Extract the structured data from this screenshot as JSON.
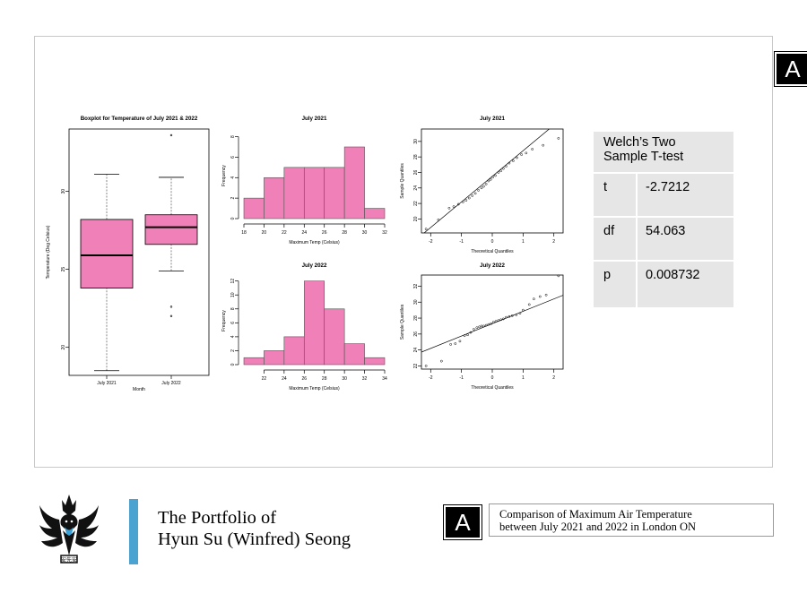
{
  "badge": {
    "top_label": "A",
    "bottom_label": "A"
  },
  "colors": {
    "bar_fill": "#f080b8",
    "box_fill": "#f080b8",
    "accent": "#4aa3d0",
    "table_bg": "#e6e6e6"
  },
  "ttest": {
    "title_line1": "Welch’s Two",
    "title_line2": "Sample T-test",
    "rows": [
      {
        "key": "t",
        "value": "-2.7212"
      },
      {
        "key": "df",
        "value": "54.063"
      },
      {
        "key": "p",
        "value": "0.008732"
      }
    ]
  },
  "footer": {
    "portfolio_line1": "The Portfolio of",
    "portfolio_line2": "Hyun Su (Winfred) Seong",
    "caption_line1": "Comparison of Maximum Air Temperature",
    "caption_line2": "between July 2021 and 2022 in London ON",
    "logo_text": "安先安"
  },
  "chart_data": [
    {
      "type": "boxplot",
      "title": "Boxplot for Temperature of July 2021 & 2022",
      "xlabel": "Month",
      "ylabel": "Temperature (Deg Celsius)",
      "categories": [
        "July 2021",
        "July 2022"
      ],
      "ylim": [
        18.2,
        34.0
      ],
      "yticks": [
        20,
        25,
        30
      ],
      "boxes": [
        {
          "name": "July 2021",
          "whisker_low": 18.5,
          "q1": 23.8,
          "median": 25.9,
          "q3": 28.2,
          "whisker_high": 31.1,
          "outliers": []
        },
        {
          "name": "July 2022",
          "whisker_low": 24.9,
          "q1": 26.6,
          "median": 27.7,
          "q3": 28.5,
          "whisker_high": 30.9,
          "outliers": [
            22.0,
            22.6,
            33.6
          ]
        }
      ]
    },
    {
      "type": "bar",
      "subtype": "histogram",
      "title": "July 2021",
      "xlabel": "Maximum Temp (Celsius)",
      "ylabel": "Frequency",
      "bin_edges": [
        18,
        20,
        22,
        24,
        26,
        28,
        30,
        32
      ],
      "values": [
        2,
        4,
        5,
        5,
        5,
        7,
        1
      ],
      "xticks": [
        18,
        20,
        22,
        24,
        26,
        28,
        30,
        32
      ],
      "yticks": [
        0,
        2,
        4,
        6,
        8
      ],
      "ylim": [
        0,
        8.4
      ]
    },
    {
      "type": "scatter",
      "subtype": "qqplot",
      "title": "July 2021",
      "xlabel": "Theoretical Quantiles",
      "ylabel": "Sample Quantiles",
      "xlim": [
        -2.3,
        2.3
      ],
      "ylim": [
        18.2,
        31.6
      ],
      "xticks": [
        -2,
        -1,
        0,
        1,
        2
      ],
      "yticks": [
        20,
        22,
        24,
        26,
        28,
        30
      ],
      "line": {
        "intercept": 25.5,
        "slope": 3.3
      },
      "points": [
        [
          -2.15,
          18.7
        ],
        [
          -1.75,
          19.9
        ],
        [
          -1.4,
          21.4
        ],
        [
          -1.25,
          21.6
        ],
        [
          -1.1,
          21.9
        ],
        [
          -0.95,
          22.2
        ],
        [
          -0.85,
          22.4
        ],
        [
          -0.75,
          22.7
        ],
        [
          -0.65,
          23.0
        ],
        [
          -0.55,
          23.3
        ],
        [
          -0.45,
          23.7
        ],
        [
          -0.35,
          24.0
        ],
        [
          -0.28,
          24.2
        ],
        [
          -0.2,
          24.5
        ],
        [
          -0.12,
          24.9
        ],
        [
          -0.05,
          25.1
        ],
        [
          0.02,
          25.4
        ],
        [
          0.1,
          25.6
        ],
        [
          0.2,
          26.0
        ],
        [
          0.28,
          26.2
        ],
        [
          0.36,
          26.5
        ],
        [
          0.45,
          26.8
        ],
        [
          0.55,
          27.2
        ],
        [
          0.68,
          27.5
        ],
        [
          0.8,
          27.9
        ],
        [
          0.95,
          28.3
        ],
        [
          1.1,
          28.5
        ],
        [
          1.3,
          29.0
        ],
        [
          1.65,
          29.5
        ],
        [
          2.15,
          30.4
        ]
      ]
    },
    {
      "type": "bar",
      "subtype": "histogram",
      "title": "July 2022",
      "xlabel": "Maximum Temp (Celsius)",
      "ylabel": "Frequency",
      "bin_edges": [
        22,
        24,
        26,
        28,
        30,
        32,
        34
      ],
      "values": [
        1,
        2,
        4,
        12,
        8,
        3,
        1
      ],
      "bin_edges_full": [
        20,
        22,
        24,
        26,
        28,
        30,
        32,
        34
      ],
      "xticks": [
        22,
        24,
        26,
        28,
        30,
        32,
        34
      ],
      "yticks": [
        0,
        2,
        4,
        6,
        8,
        10,
        12
      ],
      "ylim": [
        0,
        12.6
      ]
    },
    {
      "type": "scatter",
      "subtype": "qqplot",
      "title": "July 2022",
      "xlabel": "Theoretical Quantiles",
      "ylabel": "Sample Quantiles",
      "xlim": [
        -2.3,
        2.3
      ],
      "ylim": [
        21.6,
        33.4
      ],
      "xticks": [
        -2,
        -1,
        0,
        1,
        2
      ],
      "yticks": [
        22,
        24,
        26,
        28,
        30,
        32
      ],
      "line": {
        "intercept": 27.3,
        "slope": 1.55
      },
      "points": [
        [
          -2.15,
          22.0
        ],
        [
          -1.65,
          22.6
        ],
        [
          -1.35,
          24.7
        ],
        [
          -1.2,
          24.8
        ],
        [
          -1.05,
          25.1
        ],
        [
          -0.9,
          25.8
        ],
        [
          -0.8,
          25.9
        ],
        [
          -0.7,
          26.2
        ],
        [
          -0.6,
          26.6
        ],
        [
          -0.5,
          26.8
        ],
        [
          -0.42,
          26.9
        ],
        [
          -0.35,
          27.0
        ],
        [
          -0.28,
          27.0
        ],
        [
          -0.2,
          27.1
        ],
        [
          -0.12,
          27.2
        ],
        [
          -0.04,
          27.3
        ],
        [
          0.04,
          27.5
        ],
        [
          0.12,
          27.6
        ],
        [
          0.2,
          27.7
        ],
        [
          0.28,
          27.8
        ],
        [
          0.36,
          27.9
        ],
        [
          0.45,
          28.1
        ],
        [
          0.55,
          28.2
        ],
        [
          0.65,
          28.3
        ],
        [
          0.78,
          28.4
        ],
        [
          0.9,
          28.6
        ],
        [
          1.0,
          29.0
        ],
        [
          1.2,
          29.7
        ],
        [
          1.35,
          30.4
        ],
        [
          1.55,
          30.7
        ],
        [
          1.75,
          30.9
        ],
        [
          2.15,
          33.3
        ]
      ]
    }
  ]
}
